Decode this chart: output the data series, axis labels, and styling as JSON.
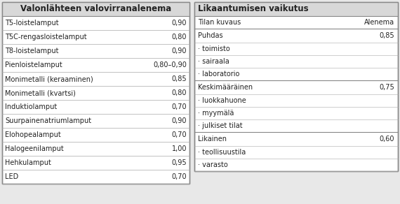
{
  "left_title": "Valonlähteen valovirranalenema",
  "left_rows": [
    [
      "T5-loistelamput",
      "0,90"
    ],
    [
      "T5C-rengasloistelamput",
      "0,80"
    ],
    [
      "T8-loistelamput",
      "0,90"
    ],
    [
      "Pienloistelamput",
      "0,80–0,90"
    ],
    [
      "Monimetalli (keraaminen)",
      "0,85"
    ],
    [
      "Monimetalli (kvartsi)",
      "0,80"
    ],
    [
      "Induktiolamput",
      "0,70"
    ],
    [
      "Suurpainenatriumlamput",
      "0,90"
    ],
    [
      "Elohopealamput",
      "0,70"
    ],
    [
      "Halogeenilamput",
      "1,00"
    ],
    [
      "Hehkulamput",
      "0,95"
    ],
    [
      "LED",
      "0,70"
    ]
  ],
  "right_title": "Likaantumisen vaikutus",
  "right_col1": "Tilan kuvaus",
  "right_col2": "Alenema",
  "right_rows": [
    {
      "type": "header",
      "label": "Puhdas",
      "value": "0,85"
    },
    {
      "type": "bullet",
      "label": "· toimisto",
      "value": ""
    },
    {
      "type": "bullet",
      "label": "· sairaala",
      "value": ""
    },
    {
      "type": "bullet",
      "label": "· laboratorio",
      "value": ""
    },
    {
      "type": "header",
      "label": "Keskimääräinen",
      "value": "0,75"
    },
    {
      "type": "bullet",
      "label": "· luokkahuone",
      "value": ""
    },
    {
      "type": "bullet",
      "label": "· myymälä",
      "value": ""
    },
    {
      "type": "bullet",
      "label": "· julkiset tilat",
      "value": ""
    },
    {
      "type": "header",
      "label": "Likainen",
      "value": "0,60"
    },
    {
      "type": "bullet",
      "label": "· teollisuustila",
      "value": ""
    },
    {
      "type": "bullet",
      "label": "· varasto",
      "value": ""
    }
  ],
  "bg_color": "#e8e8e8",
  "header_bg": "#d8d8d8",
  "border_color": "#888888",
  "text_color": "#222222",
  "divider_color": "#aaaaaa",
  "font_size": 7.0,
  "title_font_size": 8.5
}
